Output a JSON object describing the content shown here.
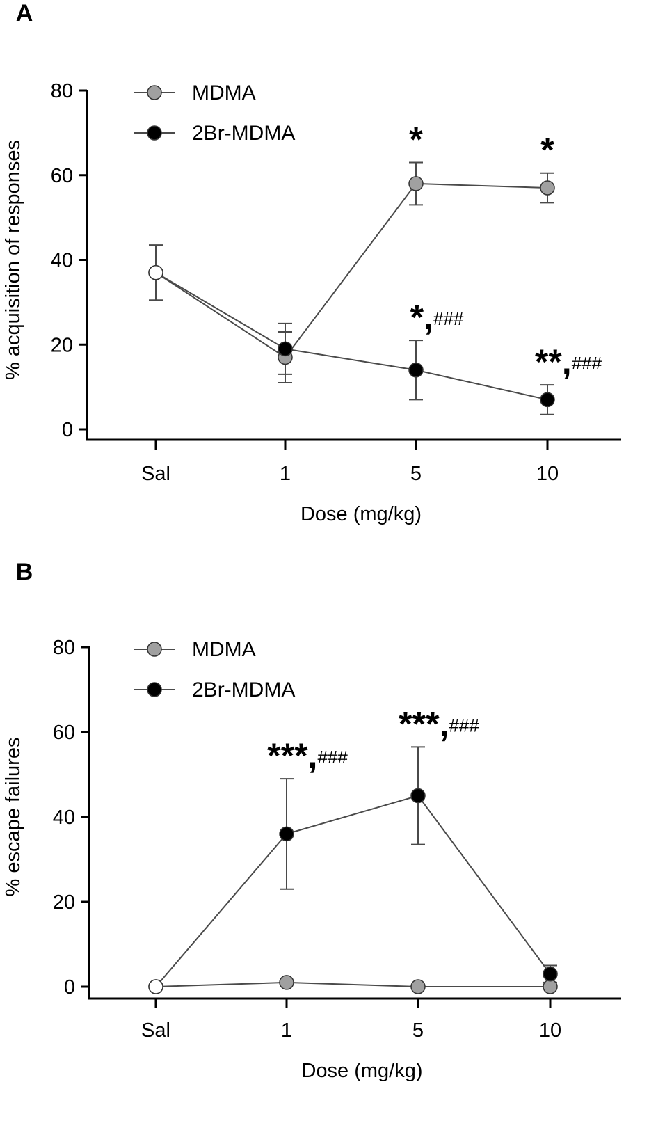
{
  "colors": {
    "mdma": "#a0a0a0",
    "br": "#000000",
    "saline": "#ffffff",
    "axis": "#000000",
    "line": "#4a4a4a"
  },
  "chart_data": [
    {
      "type": "line",
      "panel_label": "A",
      "title": "",
      "xlabel": "Dose (mg/kg)",
      "ylabel": "% acquisition of responses",
      "categories": [
        "Sal",
        "1",
        "5",
        "10"
      ],
      "ylim": [
        0,
        80
      ],
      "yticks": [
        "0",
        "20",
        "40",
        "60",
        "80"
      ],
      "legend_position": "top-left",
      "series": [
        {
          "name": "MDMA",
          "color_key": "mdma",
          "values": [
            37,
            17,
            58,
            57
          ],
          "err_up": [
            6.5,
            6,
            5,
            3.5
          ],
          "err_down": [
            6.5,
            6,
            5,
            3.5
          ]
        },
        {
          "name": "2Br-MDMA",
          "color_key": "br",
          "values": [
            37,
            19,
            14,
            7
          ],
          "err_up": [
            6.5,
            6,
            7,
            3.5
          ],
          "err_down": [
            6.5,
            6,
            7,
            3.5
          ]
        }
      ],
      "annotations": [
        {
          "series": 0,
          "index": 2,
          "stars": "*",
          "hash": ""
        },
        {
          "series": 0,
          "index": 3,
          "stars": "*",
          "hash": ""
        },
        {
          "series": 1,
          "index": 2,
          "stars": "*,",
          "hash": "###"
        },
        {
          "series": 1,
          "index": 3,
          "stars": "**,",
          "hash": "###"
        }
      ]
    },
    {
      "type": "line",
      "panel_label": "B",
      "title": "",
      "xlabel": "Dose (mg/kg)",
      "ylabel": "% escape failures",
      "categories": [
        "Sal",
        "1",
        "5",
        "10"
      ],
      "ylim": [
        0,
        80
      ],
      "yticks": [
        "0",
        "20",
        "40",
        "60",
        "80"
      ],
      "legend_position": "top-left",
      "series": [
        {
          "name": "MDMA",
          "color_key": "mdma",
          "values": [
            0,
            1,
            0,
            0
          ],
          "err_up": [
            0,
            0,
            0,
            0
          ],
          "err_down": [
            0,
            0,
            0,
            0
          ]
        },
        {
          "name": "2Br-MDMA",
          "color_key": "br",
          "values": [
            0,
            36,
            45,
            3
          ],
          "err_up": [
            0,
            13,
            11.5,
            2
          ],
          "err_down": [
            0,
            13,
            11.5,
            2
          ]
        }
      ],
      "annotations": [
        {
          "series": 1,
          "index": 1,
          "stars": "***,",
          "hash": "###"
        },
        {
          "series": 1,
          "index": 2,
          "stars": "***,",
          "hash": "###"
        }
      ]
    }
  ]
}
